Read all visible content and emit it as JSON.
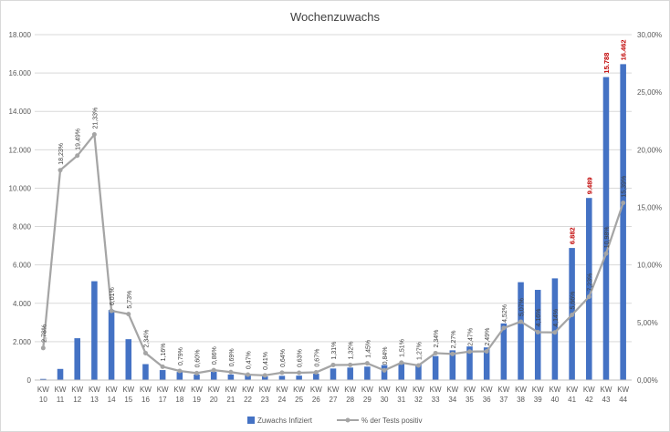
{
  "chart_data": {
    "type": "bar",
    "title": "Wochenzuwachs",
    "categories": [
      "KW 10",
      "KW 11",
      "KW 12",
      "KW 13",
      "KW 14",
      "KW 15",
      "KW 16",
      "KW 17",
      "KW 18",
      "KW 19",
      "KW 20",
      "KW 21",
      "KW 22",
      "KW 23",
      "KW 24",
      "KW 25",
      "KW 26",
      "KW 27",
      "KW 28",
      "KW 29",
      "KW 30",
      "KW 31",
      "KW 32",
      "KW 33",
      "KW 34",
      "KW 35",
      "KW 36",
      "KW 37",
      "KW 38",
      "KW 39",
      "KW 40",
      "KW 41",
      "KW 42",
      "KW 43",
      "KW 44"
    ],
    "y_left": {
      "min": 0,
      "max": 18000,
      "step": 2000,
      "tick_labels": [
        "0",
        "2.000",
        "4.000",
        "6.000",
        "8.000",
        "10.000",
        "12.000",
        "14.000",
        "16.000",
        "18.000"
      ]
    },
    "y_right": {
      "min": 0,
      "max": 30,
      "step": 5,
      "tick_labels": [
        "0,00%",
        "5,00%",
        "10,00%",
        "15,00%",
        "20,00%",
        "25,00%",
        "30,00%"
      ]
    },
    "series": [
      {
        "name": "Zuwachs Infiziert",
        "kind": "bar",
        "axis": "left",
        "color": "#4472c4",
        "values": [
          60,
          580,
          2180,
          5150,
          3650,
          2130,
          830,
          520,
          420,
          290,
          430,
          290,
          250,
          190,
          220,
          230,
          330,
          600,
          650,
          700,
          780,
          880,
          820,
          1250,
          1550,
          1750,
          1700,
          2950,
          5100,
          4700,
          5300,
          6882,
          9489,
          15788,
          16462
        ],
        "data_labels": {
          "31": "6.882",
          "32": "9.489",
          "33": "15.788",
          "34": "16.462"
        },
        "data_label_color": "#c00000"
      },
      {
        "name": "% der Tests positiv",
        "kind": "line",
        "axis": "right",
        "color": "#a5a5a5",
        "values": [
          2.78,
          18.23,
          19.49,
          21.33,
          6.01,
          5.73,
          2.34,
          1.16,
          0.79,
          0.6,
          0.86,
          0.69,
          0.47,
          0.41,
          0.64,
          0.63,
          0.67,
          1.31,
          1.32,
          1.45,
          0.84,
          1.51,
          1.27,
          2.34,
          2.27,
          2.47,
          2.49,
          4.52,
          5.07,
          4.16,
          4.14,
          5.66,
          7.23,
          10.98,
          15.39
        ],
        "labels": [
          "2,78%",
          "18,23%",
          "19,49%",
          "21,33%",
          "6,01%",
          "5,73%",
          "2,34%",
          "1,16%",
          "0,79%",
          "0,60%",
          "0,86%",
          "0,69%",
          "0,47%",
          "0,41%",
          "0,64%",
          "0,63%",
          "0,67%",
          "1,31%",
          "1,32%",
          "1,45%",
          "0,84%",
          "1,51%",
          "1,27%",
          "2,34%",
          "2,27%",
          "2,47%",
          "2,49%",
          "4,52%",
          "5,07%",
          "4,16%",
          "4,14%",
          "5,66%",
          "7,23%",
          "10,98%",
          "15,39%"
        ]
      }
    ],
    "grid": true,
    "legend_position": "bottom"
  }
}
